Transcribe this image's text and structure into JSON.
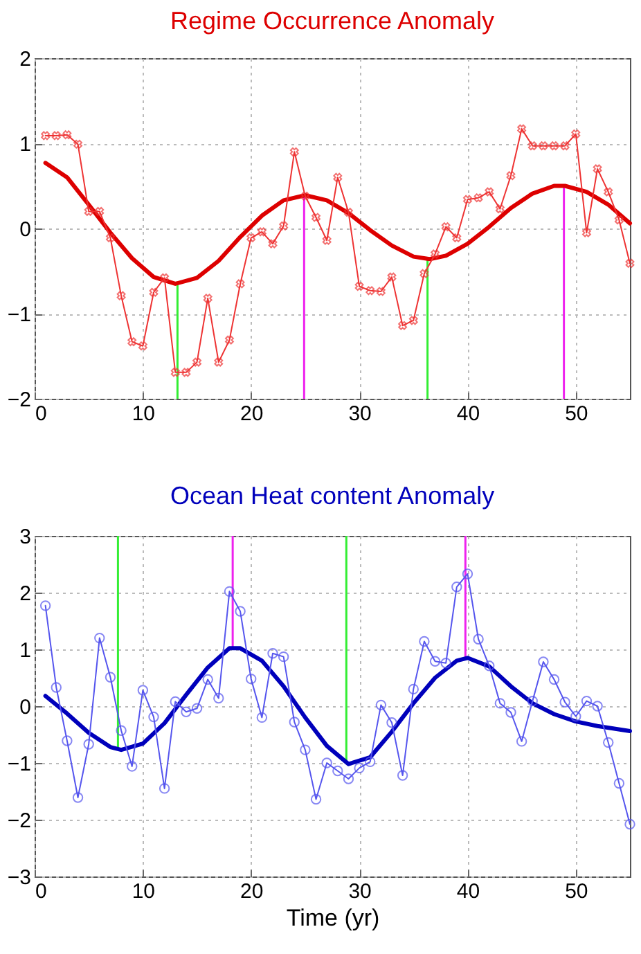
{
  "chart_data": [
    {
      "type": "line",
      "title": "Regime Occurrence Anomaly",
      "xlim": [
        0,
        55
      ],
      "xticks": [
        0,
        10,
        20,
        30,
        40,
        50
      ],
      "ylim": [
        -2,
        2
      ],
      "yticks": [
        -2,
        -1,
        0,
        1,
        2
      ],
      "grid": true,
      "series": [
        {
          "color": "#ee3333",
          "marker": "cross",
          "x": [
            1,
            2,
            3,
            4,
            5,
            6,
            7,
            8,
            9,
            10,
            11,
            12,
            13,
            14,
            15,
            16,
            17,
            18,
            19,
            20,
            21,
            22,
            23,
            24,
            25,
            26,
            27,
            28,
            29,
            30,
            31,
            32,
            33,
            34,
            35,
            36,
            37,
            38,
            39,
            40,
            41,
            42,
            43,
            44,
            45,
            46,
            47,
            48,
            49,
            50,
            51,
            52,
            53,
            54,
            55
          ],
          "values": [
            1.09,
            1.09,
            1.1,
            0.99,
            0.2,
            0.2,
            -0.11,
            -0.79,
            -1.33,
            -1.38,
            -0.75,
            -0.58,
            -1.69,
            -1.69,
            -1.57,
            -0.82,
            -1.57,
            -1.31,
            -0.65,
            -0.11,
            -0.04,
            -0.18,
            0.03,
            0.9,
            0.38,
            0.13,
            -0.14,
            0.6,
            0.19,
            -0.68,
            -0.73,
            -0.74,
            -0.57,
            -1.14,
            -1.08,
            -0.53,
            -0.3,
            0.02,
            -0.11,
            0.34,
            0.36,
            0.43,
            0.23,
            0.62,
            1.17,
            0.97,
            0.97,
            0.97,
            0.97,
            1.11,
            -0.05,
            0.7,
            0.43,
            0.1,
            -0.41
          ]
        },
        {
          "color": "#dd0000",
          "marker": "none",
          "x": [
            1,
            3,
            5,
            7,
            9,
            11,
            13,
            15,
            17,
            19,
            21,
            23,
            25,
            27,
            29,
            31,
            33,
            35,
            36.5,
            38,
            40,
            42,
            44,
            46,
            48,
            49,
            51,
            53,
            55
          ],
          "values": [
            0.77,
            0.6,
            0.28,
            -0.05,
            -0.35,
            -0.57,
            -0.65,
            -0.58,
            -0.38,
            -0.1,
            0.15,
            0.33,
            0.39,
            0.33,
            0.18,
            -0.02,
            -0.2,
            -0.33,
            -0.36,
            -0.32,
            -0.18,
            0.02,
            0.24,
            0.41,
            0.5,
            0.5,
            0.43,
            0.28,
            0.06
          ]
        }
      ],
      "ref_lines": [
        {
          "axis": "x",
          "value": 13.2,
          "color": "#33ee33"
        },
        {
          "axis": "x",
          "value": 24.9,
          "color": "#ee22ee"
        },
        {
          "axis": "x",
          "value": 36.3,
          "color": "#33ee33"
        },
        {
          "axis": "x",
          "value": 48.9,
          "color": "#ee22ee"
        }
      ]
    },
    {
      "type": "line",
      "title": "Ocean Heat content Anomaly",
      "xlabel": "Time (yr)",
      "xlim": [
        0,
        55
      ],
      "xticks": [
        0,
        10,
        20,
        30,
        40,
        50
      ],
      "ylim": [
        -3,
        3
      ],
      "yticks": [
        -3,
        -2,
        -1,
        0,
        1,
        2,
        3
      ],
      "grid": true,
      "series": [
        {
          "color": "#5555ee",
          "marker": "circle",
          "x": [
            1,
            2,
            3,
            4,
            5,
            6,
            7,
            8,
            9,
            10,
            11,
            12,
            13,
            14,
            15,
            16,
            17,
            18,
            19,
            20,
            21,
            22,
            23,
            24,
            25,
            26,
            27,
            28,
            29,
            30,
            31,
            32,
            33,
            34,
            35,
            36,
            37,
            38,
            39,
            40,
            41,
            42,
            43,
            44,
            45,
            46,
            47,
            48,
            49,
            50,
            51,
            52,
            53,
            54,
            55
          ],
          "values": [
            1.77,
            0.33,
            -0.61,
            -1.61,
            -0.67,
            1.2,
            0.51,
            -0.43,
            -1.06,
            0.28,
            -0.19,
            -1.45,
            0.08,
            -0.1,
            -0.04,
            0.47,
            0.14,
            2.02,
            1.67,
            0.48,
            -0.2,
            0.93,
            0.87,
            -0.28,
            -0.77,
            -1.64,
            -1.0,
            -1.14,
            -1.28,
            -1.09,
            -0.98,
            0.02,
            -0.29,
            -1.22,
            0.3,
            1.14,
            0.79,
            0.76,
            2.1,
            2.33,
            1.18,
            0.71,
            0.05,
            -0.11,
            -0.62,
            0.09,
            0.78,
            0.47,
            0.07,
            -0.18,
            0.09,
            0.0,
            -0.64,
            -1.36,
            -2.08
          ]
        },
        {
          "color": "#0000bb",
          "marker": "none",
          "x": [
            1,
            3,
            5,
            7,
            8,
            10,
            12,
            14,
            16,
            18,
            19,
            21,
            23,
            25,
            27,
            29,
            31,
            33,
            35,
            37,
            39,
            40,
            42,
            44,
            46,
            48,
            50,
            52,
            55
          ],
          "values": [
            0.18,
            -0.13,
            -0.47,
            -0.72,
            -0.77,
            -0.66,
            -0.3,
            0.2,
            0.68,
            1.02,
            1.02,
            0.8,
            0.35,
            -0.2,
            -0.7,
            -1.02,
            -0.9,
            -0.45,
            0.05,
            0.5,
            0.8,
            0.85,
            0.7,
            0.35,
            0.05,
            -0.14,
            -0.27,
            -0.35,
            -0.44
          ]
        }
      ],
      "ref_lines": [
        {
          "axis": "x",
          "value": 7.7,
          "color": "#33ee33"
        },
        {
          "axis": "x",
          "value": 18.3,
          "color": "#ee22ee"
        },
        {
          "axis": "x",
          "value": 28.8,
          "color": "#33ee33"
        },
        {
          "axis": "x",
          "value": 39.8,
          "color": "#ee22ee"
        }
      ]
    }
  ]
}
